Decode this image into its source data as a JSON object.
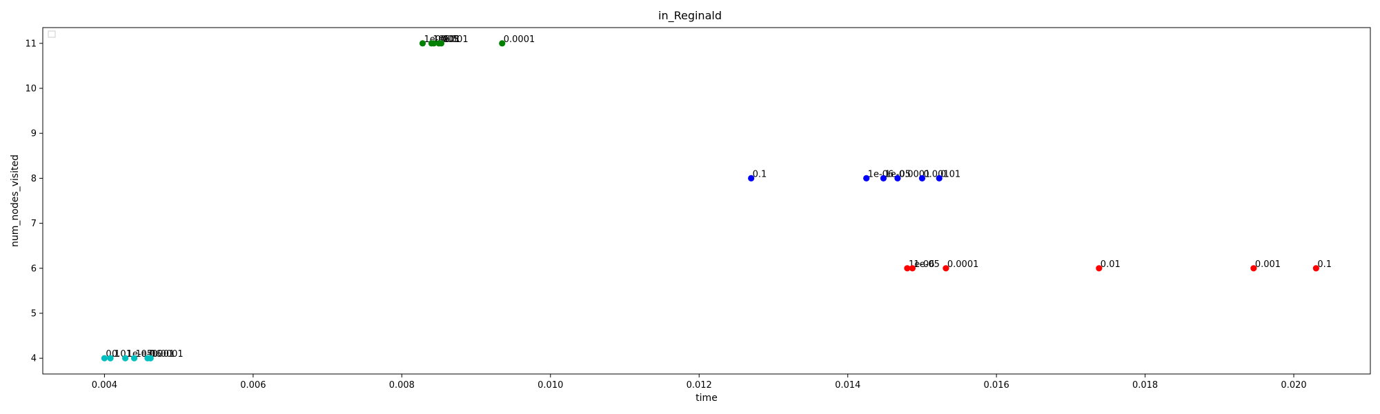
{
  "chart_data": {
    "type": "scatter",
    "title": "in_Reginald",
    "xlabel": "time",
    "ylabel": "num_nodes_visited",
    "xlim": [
      0.00317,
      0.02103
    ],
    "ylim": [
      3.65,
      11.35
    ],
    "xticks": [
      "0.004",
      "0.006",
      "0.008",
      "0.010",
      "0.012",
      "0.014",
      "0.016",
      "0.018",
      "0.020"
    ],
    "yticks": [
      "4",
      "5",
      "6",
      "7",
      "8",
      "9",
      "10",
      "11"
    ],
    "grid": false,
    "legend": {
      "placement": "upper-left",
      "entries": []
    },
    "series": [
      {
        "color": "#00bfbf",
        "points": [
          {
            "x": 0.004,
            "y": 4,
            "label": "0.1"
          },
          {
            "x": 0.00408,
            "y": 4,
            "label": "0.01"
          },
          {
            "x": 0.00428,
            "y": 4,
            "label": "1e-05"
          },
          {
            "x": 0.0044,
            "y": 4,
            "label": "1e-06"
          },
          {
            "x": 0.00458,
            "y": 4,
            "label": "0.001"
          },
          {
            "x": 0.00462,
            "y": 4,
            "label": "0.0001"
          }
        ]
      },
      {
        "color": "#008000",
        "points": [
          {
            "x": 0.00828,
            "y": 11,
            "label": "1e-06"
          },
          {
            "x": 0.0084,
            "y": 11,
            "label": "1e-05"
          },
          {
            "x": 0.00843,
            "y": 11,
            "label": "0.1"
          },
          {
            "x": 0.0085,
            "y": 11,
            "label": "0.01"
          },
          {
            "x": 0.00853,
            "y": 11,
            "label": "0.001"
          },
          {
            "x": 0.00935,
            "y": 11,
            "label": "0.0001"
          }
        ]
      },
      {
        "color": "#0000ff",
        "points": [
          {
            "x": 0.0127,
            "y": 8,
            "label": "0.1"
          },
          {
            "x": 0.01425,
            "y": 8,
            "label": "1e-06"
          },
          {
            "x": 0.01448,
            "y": 8,
            "label": "1e-05"
          },
          {
            "x": 0.01467,
            "y": 8,
            "label": "0.0001"
          },
          {
            "x": 0.015,
            "y": 8,
            "label": "0.001"
          },
          {
            "x": 0.01523,
            "y": 8,
            "label": "0.01"
          }
        ]
      },
      {
        "color": "#ff0000",
        "points": [
          {
            "x": 0.0148,
            "y": 6,
            "label": "1e-06"
          },
          {
            "x": 0.01487,
            "y": 6,
            "label": "1e-05"
          },
          {
            "x": 0.01532,
            "y": 6,
            "label": "0.0001"
          },
          {
            "x": 0.01738,
            "y": 6,
            "label": "0.01"
          },
          {
            "x": 0.01946,
            "y": 6,
            "label": "0.001"
          },
          {
            "x": 0.0203,
            "y": 6,
            "label": "0.1"
          }
        ]
      }
    ]
  }
}
